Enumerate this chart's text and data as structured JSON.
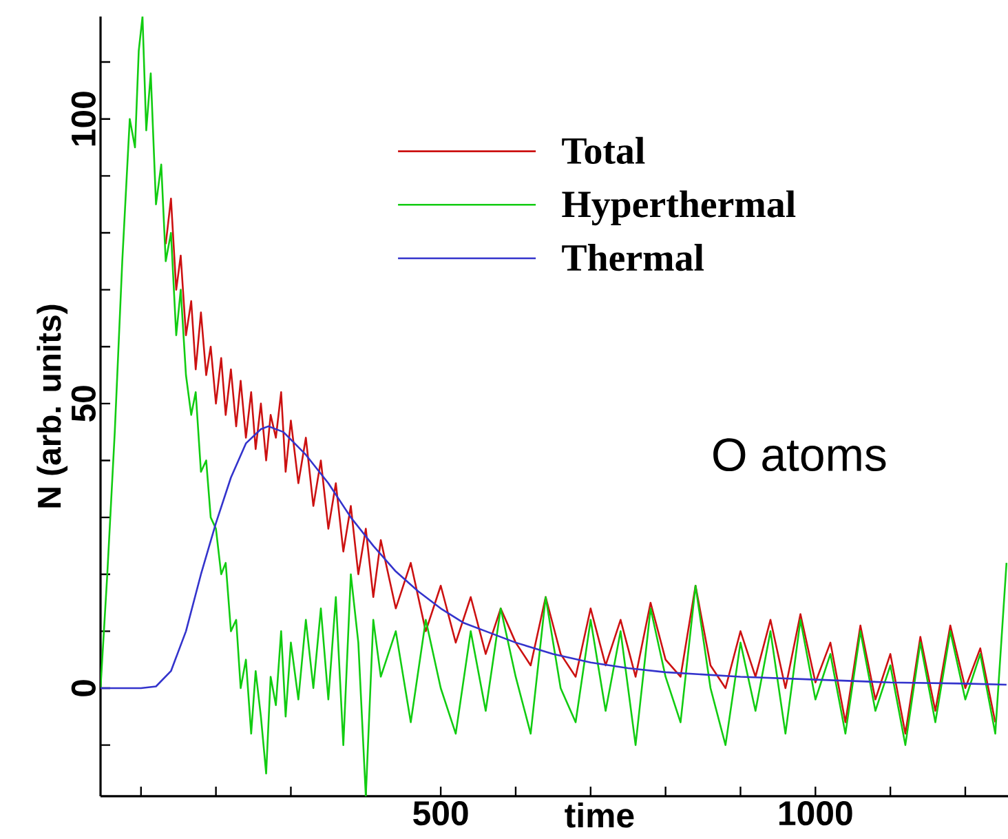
{
  "chart_data": {
    "type": "line",
    "xlabel": "time",
    "ylabel": "N (arb. units)",
    "annotations": [
      "O atoms"
    ],
    "xlim": [
      46,
      1257
    ],
    "ylim": [
      -19,
      118
    ],
    "xticks": [
      {
        "value": 100,
        "label": null
      },
      {
        "value": 200,
        "label": null
      },
      {
        "value": 300,
        "label": null
      },
      {
        "value": 400,
        "label": null
      },
      500,
      {
        "value": 600,
        "label": null
      },
      {
        "value": 700,
        "label": null
      },
      {
        "value": 800,
        "label": null
      },
      {
        "value": 900,
        "label": null
      },
      1000,
      {
        "value": 1100,
        "label": null
      },
      {
        "value": 1200,
        "label": null
      }
    ],
    "yticks": [
      {
        "value": -10,
        "label": null
      },
      0,
      {
        "value": 10,
        "label": null
      },
      {
        "value": 20,
        "label": null
      },
      {
        "value": 30,
        "label": null
      },
      {
        "value": 40,
        "label": null
      },
      50,
      {
        "value": 60,
        "label": null
      },
      {
        "value": 70,
        "label": null
      },
      {
        "value": 80,
        "label": null
      },
      {
        "value": 90,
        "label": null
      },
      100,
      {
        "value": 110,
        "label": null
      }
    ],
    "legend": "top right",
    "marker": "none",
    "line_style": "solid",
    "grid": false,
    "x": [
      46,
      55,
      65,
      75,
      85,
      92,
      97,
      102,
      107,
      113,
      120,
      127,
      133,
      140,
      147,
      153,
      160,
      167,
      173,
      180,
      187,
      193,
      200,
      207,
      213,
      220,
      227,
      233,
      240,
      247,
      253,
      260,
      267,
      273,
      280,
      287,
      293,
      300,
      310,
      320,
      330,
      340,
      350,
      360,
      370,
      380,
      390,
      400,
      410,
      420,
      440,
      460,
      480,
      500,
      520,
      540,
      560,
      580,
      600,
      620,
      640,
      660,
      680,
      700,
      720,
      740,
      760,
      780,
      800,
      820,
      840,
      860,
      880,
      900,
      920,
      940,
      960,
      980,
      1000,
      1020,
      1040,
      1060,
      1080,
      1100,
      1120,
      1140,
      1160,
      1180,
      1200,
      1220,
      1240,
      1255
    ],
    "series": [
      {
        "name": "Total",
        "color": "#cc1111",
        "values": [
          null,
          null,
          null,
          null,
          null,
          null,
          null,
          null,
          null,
          null,
          null,
          null,
          78,
          86,
          70,
          76,
          62,
          68,
          56,
          66,
          55,
          60,
          50,
          58,
          48,
          56,
          46,
          54,
          44,
          52,
          42,
          50,
          40,
          48,
          44,
          52,
          38,
          47,
          36,
          44,
          32,
          40,
          28,
          36,
          24,
          32,
          20,
          28,
          16,
          26,
          14,
          22,
          10,
          18,
          8,
          16,
          6,
          14,
          8,
          4,
          16,
          6,
          2,
          14,
          4,
          12,
          2,
          15,
          5,
          2,
          18,
          4,
          0,
          10,
          2,
          12,
          0,
          13,
          1,
          8,
          -6,
          11,
          -2,
          6,
          -8,
          9,
          -4,
          11,
          0,
          7,
          -6,
          null
        ]
      },
      {
        "name": "Hyperthermal",
        "color": "#11cc11",
        "values": [
          0,
          20,
          45,
          75,
          100,
          95,
          112,
          118,
          98,
          108,
          85,
          92,
          75,
          80,
          62,
          70,
          55,
          48,
          52,
          38,
          40,
          30,
          28,
          20,
          22,
          10,
          12,
          0,
          5,
          -8,
          3,
          -5,
          -15,
          2,
          -3,
          10,
          -5,
          8,
          -2,
          12,
          0,
          14,
          -2,
          16,
          -10,
          20,
          8,
          -19,
          12,
          2,
          10,
          -6,
          12,
          0,
          -8,
          10,
          -4,
          14,
          2,
          -8,
          16,
          0,
          -6,
          12,
          -4,
          10,
          -10,
          14,
          2,
          -6,
          18,
          0,
          -10,
          8,
          -4,
          10,
          -8,
          12,
          -2,
          6,
          -8,
          10,
          -4,
          4,
          -10,
          8,
          -6,
          10,
          -2,
          6,
          -8,
          22
        ]
      },
      {
        "name": "Thermal",
        "color": "#3333cc",
        "x": [
          46,
          100,
          120,
          140,
          160,
          180,
          200,
          220,
          240,
          260,
          270,
          290,
          320,
          350,
          380,
          410,
          440,
          470,
          500,
          530,
          560,
          600,
          650,
          700,
          750,
          800,
          900,
          1000,
          1100,
          1200,
          1255
        ],
        "values": [
          0,
          0,
          0.3,
          3,
          10,
          20,
          29,
          37,
          43,
          45.5,
          46,
          45,
          41,
          36,
          30,
          25,
          20.5,
          17,
          14,
          11.5,
          10,
          8,
          6,
          4.5,
          3.5,
          2.8,
          2,
          1.5,
          1,
          0.8,
          0.6
        ]
      }
    ]
  }
}
